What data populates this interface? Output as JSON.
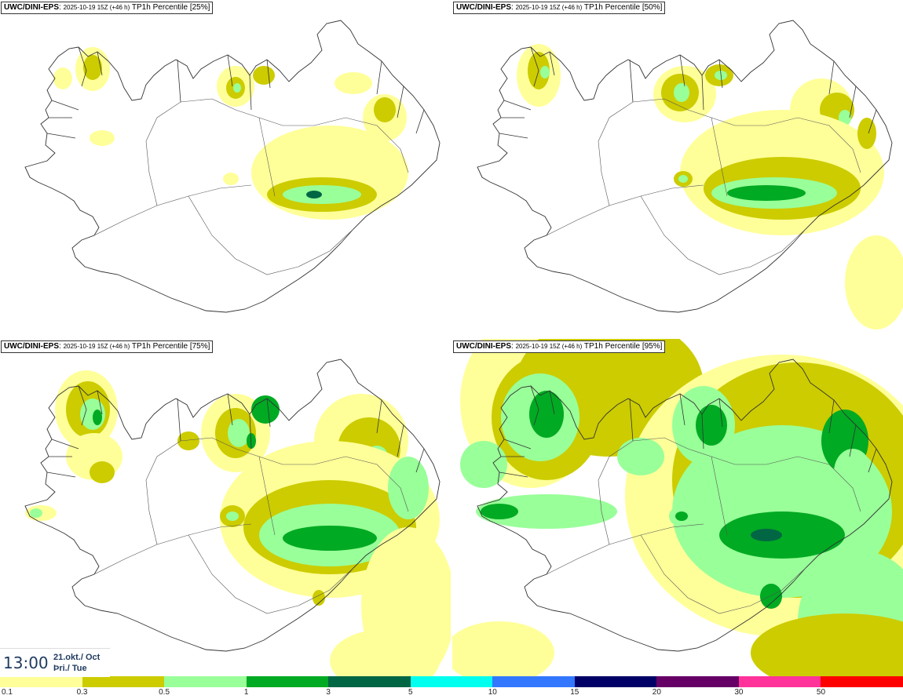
{
  "panels": [
    {
      "model": "UWC/DINI-EPS",
      "run": "2025-10-19 15Z (+46 h)",
      "field": "TP1h Percentile [25%]",
      "level": 0
    },
    {
      "model": "UWC/DINI-EPS",
      "run": "2025-10-19 15Z (+46 h)",
      "field": "TP1h Percentile [50%]",
      "level": 1
    },
    {
      "model": "UWC/DINI-EPS",
      "run": "2025-10-19 15Z (+46 h)",
      "field": "TP1h Percentile [75%]",
      "level": 2
    },
    {
      "model": "UWC/DINI-EPS",
      "run": "2025-10-19 15Z (+46 h)",
      "field": "TP1h Percentile [95%]",
      "level": 3
    }
  ],
  "valid_time": {
    "time": "13:00",
    "date": "21.okt./ Oct",
    "weekday": "Þri./ Tue"
  },
  "legend": {
    "labels": [
      "0.1",
      "0.3",
      "0.5",
      "1",
      "3",
      "5",
      "10",
      "15",
      "20",
      "30",
      "50"
    ],
    "colors": [
      "#ffff99",
      "#cccc00",
      "#99ff99",
      "#00aa22",
      "#006644",
      "#00ffee",
      "#3377ff",
      "#000066",
      "#660066",
      "#ff3399",
      "#ff0000"
    ]
  },
  "map_colors": {
    "light": "#ffff99",
    "olive": "#cccc00",
    "lightgreen": "#99ff99",
    "green": "#00aa22",
    "darkgreen": "#006644",
    "coast": "#333333"
  }
}
